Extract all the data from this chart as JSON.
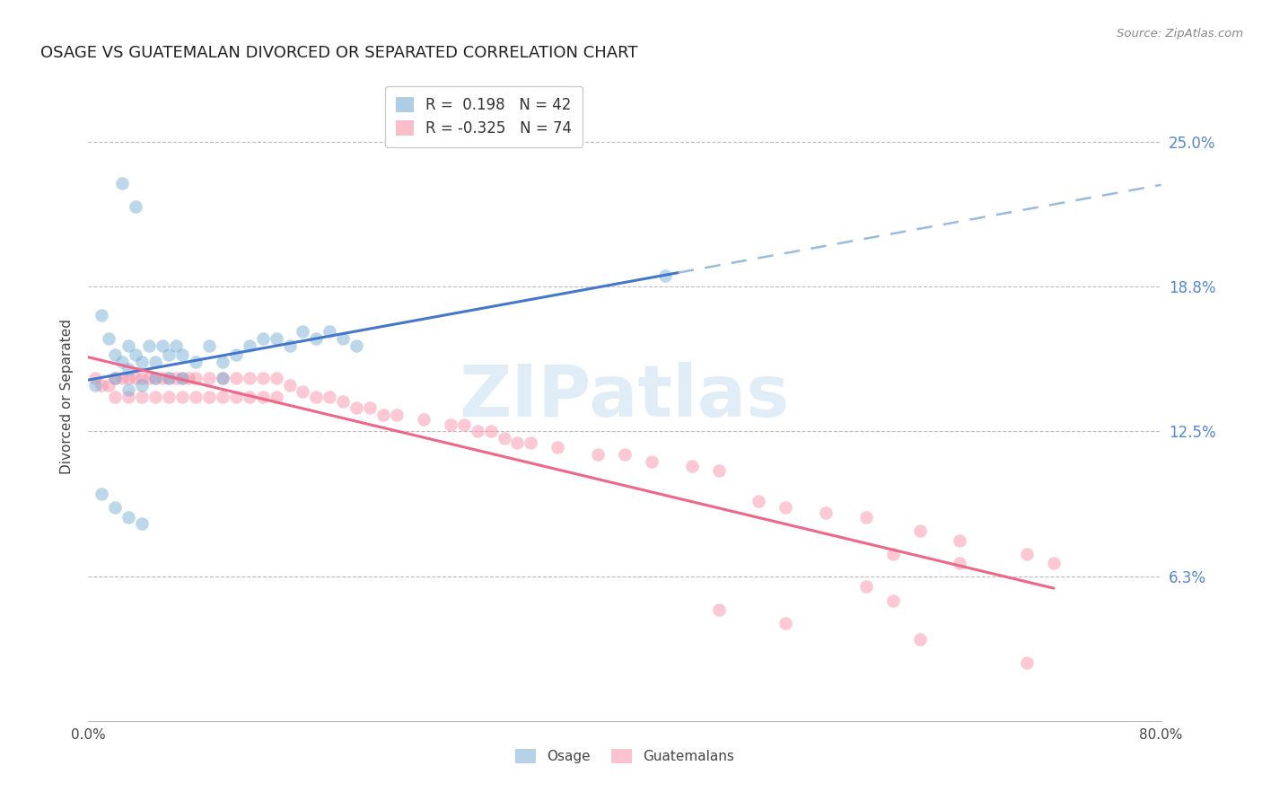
{
  "title": "OSAGE VS GUATEMALAN DIVORCED OR SEPARATED CORRELATION CHART",
  "source": "Source: ZipAtlas.com",
  "ylabel": "Divorced or Separated",
  "xlim": [
    0.0,
    0.8
  ],
  "ylim": [
    0.0,
    0.28
  ],
  "y_tick_vals": [
    0.0,
    0.0625,
    0.125,
    0.1875,
    0.25
  ],
  "y_tick_labels": [
    "",
    "6.3%",
    "12.5%",
    "18.8%",
    "25.0%"
  ],
  "x_tick_vals": [
    0.0,
    0.1,
    0.2,
    0.3,
    0.4,
    0.5,
    0.6,
    0.7,
    0.8
  ],
  "x_tick_labels": [
    "0.0%",
    "",
    "",
    "",
    "",
    "",
    "",
    "",
    "80.0%"
  ],
  "osage_R": 0.198,
  "osage_N": 42,
  "guatemalan_R": -0.325,
  "guatemalan_N": 74,
  "watermark": "ZIPatlas",
  "blue_color": "#7aaed6",
  "pink_color": "#f892a8",
  "blue_line_color": "#4477cc",
  "blue_dash_color": "#99bbdd",
  "pink_line_color": "#ee6688",
  "legend_blue_label": "Osage",
  "legend_pink_label": "Guatemalans",
  "osage_x": [
    0.005,
    0.01,
    0.015,
    0.02,
    0.02,
    0.025,
    0.03,
    0.03,
    0.03,
    0.035,
    0.04,
    0.04,
    0.045,
    0.05,
    0.05,
    0.055,
    0.06,
    0.06,
    0.065,
    0.07,
    0.07,
    0.08,
    0.09,
    0.1,
    0.1,
    0.11,
    0.12,
    0.13,
    0.14,
    0.15,
    0.16,
    0.17,
    0.18,
    0.19,
    0.2,
    0.01,
    0.02,
    0.03,
    0.04,
    0.43,
    0.025,
    0.035
  ],
  "osage_y": [
    0.145,
    0.175,
    0.165,
    0.158,
    0.148,
    0.155,
    0.162,
    0.152,
    0.143,
    0.158,
    0.155,
    0.145,
    0.162,
    0.155,
    0.148,
    0.162,
    0.158,
    0.148,
    0.162,
    0.158,
    0.148,
    0.155,
    0.162,
    0.155,
    0.148,
    0.158,
    0.162,
    0.165,
    0.165,
    0.162,
    0.168,
    0.165,
    0.168,
    0.165,
    0.162,
    0.098,
    0.092,
    0.088,
    0.085,
    0.192,
    0.232,
    0.222
  ],
  "guate_x": [
    0.005,
    0.01,
    0.015,
    0.02,
    0.02,
    0.025,
    0.03,
    0.03,
    0.035,
    0.04,
    0.04,
    0.045,
    0.05,
    0.05,
    0.055,
    0.06,
    0.06,
    0.065,
    0.07,
    0.07,
    0.075,
    0.08,
    0.08,
    0.09,
    0.09,
    0.1,
    0.1,
    0.11,
    0.11,
    0.12,
    0.12,
    0.13,
    0.13,
    0.14,
    0.14,
    0.15,
    0.16,
    0.17,
    0.18,
    0.19,
    0.2,
    0.21,
    0.22,
    0.23,
    0.25,
    0.27,
    0.28,
    0.29,
    0.3,
    0.31,
    0.32,
    0.33,
    0.35,
    0.38,
    0.4,
    0.42,
    0.45,
    0.47,
    0.5,
    0.52,
    0.55,
    0.58,
    0.62,
    0.65,
    0.7,
    0.72,
    0.47,
    0.52,
    0.58,
    0.6,
    0.6,
    0.62,
    0.65,
    0.7
  ],
  "guate_y": [
    0.148,
    0.145,
    0.145,
    0.148,
    0.14,
    0.148,
    0.148,
    0.14,
    0.148,
    0.148,
    0.14,
    0.148,
    0.148,
    0.14,
    0.148,
    0.148,
    0.14,
    0.148,
    0.148,
    0.14,
    0.148,
    0.148,
    0.14,
    0.148,
    0.14,
    0.148,
    0.14,
    0.148,
    0.14,
    0.148,
    0.14,
    0.148,
    0.14,
    0.148,
    0.14,
    0.145,
    0.142,
    0.14,
    0.14,
    0.138,
    0.135,
    0.135,
    0.132,
    0.132,
    0.13,
    0.128,
    0.128,
    0.125,
    0.125,
    0.122,
    0.12,
    0.12,
    0.118,
    0.115,
    0.115,
    0.112,
    0.11,
    0.108,
    0.095,
    0.092,
    0.09,
    0.088,
    0.082,
    0.078,
    0.072,
    0.068,
    0.048,
    0.042,
    0.058,
    0.052,
    0.072,
    0.035,
    0.068,
    0.025
  ]
}
